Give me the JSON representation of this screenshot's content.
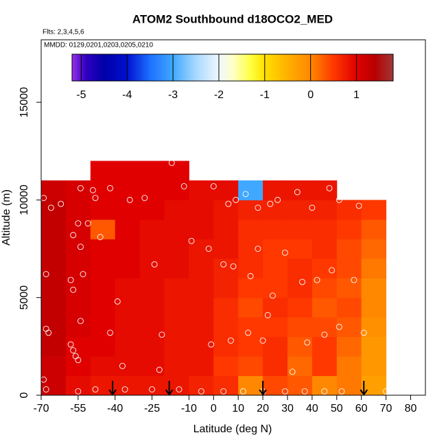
{
  "chart_data": {
    "type": "heatmap",
    "title": "ATOM2 Southbound d18OCO2_MED",
    "subtitle": "Flts: 2,3,4,5,6",
    "annotation": "MMDD: 0129,0201,0203,0205,0210",
    "x_label": "Latitude (deg N)",
    "y_label": "Altitude (m)",
    "xlim": [
      -70,
      86
    ],
    "ylim": [
      0,
      18200
    ],
    "xticks": [
      -70,
      -55,
      -40,
      -25,
      -10,
      0,
      10,
      20,
      30,
      40,
      50,
      60,
      70,
      80
    ],
    "yticks": [
      0,
      5000,
      10000,
      15000
    ],
    "x_edges": [
      -70,
      -60,
      -50,
      -40,
      -30,
      -20,
      -10,
      0,
      10,
      20,
      30,
      40,
      50,
      60,
      70
    ],
    "y_edges": [
      0,
      1000,
      2000,
      3000,
      4000,
      5000,
      6000,
      7000,
      8000,
      9000,
      10000,
      11000,
      12000
    ],
    "z": [
      [
        1.2,
        0.9,
        0.8,
        0.8,
        0.8,
        0.8,
        0.7,
        0.6,
        0.0,
        0.4,
        0.3,
        0.0,
        0.1,
        -0.3
      ],
      [
        1.2,
        1.0,
        0.9,
        0.9,
        0.9,
        0.8,
        0.8,
        0.5,
        0.4,
        0.6,
        0.2,
        0.5,
        0.1,
        -0.2
      ],
      [
        1.3,
        1.0,
        1.0,
        0.9,
        0.9,
        0.8,
        0.8,
        0.6,
        0.5,
        0.6,
        0.3,
        0.5,
        0.2,
        -0.2
      ],
      [
        1.3,
        1.1,
        1.0,
        0.9,
        0.9,
        0.8,
        0.8,
        0.6,
        0.5,
        0.5,
        0.4,
        0.4,
        0.3,
        -0.1
      ],
      [
        1.3,
        1.1,
        1.0,
        0.9,
        0.9,
        0.8,
        0.8,
        0.6,
        0.4,
        0.6,
        0.5,
        0.3,
        0.4,
        0.0
      ],
      [
        1.3,
        1.1,
        1.0,
        0.9,
        0.9,
        0.8,
        0.8,
        0.7,
        0.5,
        0.5,
        0.6,
        0.4,
        0.3,
        0.0
      ],
      [
        1.3,
        1.1,
        1.0,
        1.0,
        0.9,
        0.9,
        0.8,
        0.7,
        0.6,
        0.5,
        0.6,
        0.5,
        0.4,
        0.1
      ],
      [
        1.3,
        1.1,
        1.0,
        1.0,
        0.9,
        0.9,
        0.8,
        0.8,
        0.6,
        0.5,
        0.5,
        0.6,
        0.4,
        0.2
      ],
      [
        1.3,
        1.1,
        0.3,
        1.0,
        0.9,
        0.9,
        0.9,
        0.8,
        0.6,
        0.6,
        0.6,
        0.6,
        0.5,
        0.3
      ],
      [
        1.3,
        1.1,
        1.0,
        1.0,
        1.0,
        0.9,
        0.9,
        0.8,
        0.7,
        0.7,
        0.7,
        0.7,
        0.6,
        0.5
      ],
      [
        1.2,
        1.1,
        1.0,
        1.0,
        1.0,
        1.0,
        0.9,
        0.9,
        -3.0,
        0.8,
        0.8,
        0.8,
        null,
        null
      ],
      [
        null,
        null,
        1.0,
        1.0,
        1.0,
        1.0,
        null,
        null,
        null,
        null,
        null,
        null,
        null,
        null
      ]
    ],
    "colorbar_lim": [
      -5.2,
      1.8
    ],
    "colorbar_ticks": [
      -5,
      -4,
      -3,
      -2,
      -1,
      0,
      1
    ],
    "colorscale": [
      [
        -5.2,
        "#9a30e8"
      ],
      [
        -4.9,
        "#3000c0"
      ],
      [
        -4.5,
        "#0000a8"
      ],
      [
        -4.0,
        "#0010d0"
      ],
      [
        -3.5,
        "#1e70ff"
      ],
      [
        -3.0,
        "#40a8ff"
      ],
      [
        -2.5,
        "#a8d8ff"
      ],
      [
        -2.0,
        "#eef8ff"
      ],
      [
        -1.7,
        "#ffffc8"
      ],
      [
        -1.3,
        "#ffff40"
      ],
      [
        -1.0,
        "#ffe000"
      ],
      [
        -0.5,
        "#ffb000"
      ],
      [
        0.0,
        "#ff8800"
      ],
      [
        0.5,
        "#ff3800"
      ],
      [
        1.0,
        "#e00000"
      ],
      [
        1.4,
        "#b80000"
      ],
      [
        1.8,
        "#a03838"
      ]
    ],
    "points": {
      "x": [
        -69,
        -66,
        -62,
        -54,
        -49,
        -48,
        -42,
        -34,
        -28,
        -17,
        -12,
        0,
        6,
        9,
        13,
        18,
        23,
        26,
        34,
        40,
        47,
        51,
        59,
        -55,
        -51,
        -46,
        -57,
        -54,
        -68,
        -58,
        -53,
        -57,
        -24,
        -9,
        -2,
        4,
        8,
        15,
        18,
        29,
        36,
        42,
        48,
        57,
        -39,
        22,
        24,
        -54,
        -42,
        -68,
        -67,
        -21,
        14,
        20,
        38,
        45,
        51,
        61,
        -58,
        -57,
        -56,
        -55,
        -37,
        -22,
        -1,
        7,
        32,
        -69,
        -68,
        -55,
        -48,
        -36,
        -25,
        -14,
        -5,
        4,
        12,
        20,
        29,
        37,
        45,
        52,
        70
      ],
      "y": [
        10100,
        9600,
        9800,
        10600,
        10500,
        10100,
        10600,
        10000,
        10100,
        11900,
        10700,
        10700,
        9800,
        10000,
        10300,
        9600,
        9800,
        10000,
        10400,
        9600,
        10600,
        10000,
        9700,
        8800,
        8800,
        8100,
        8200,
        7600,
        6200,
        5900,
        6200,
        5400,
        6700,
        7900,
        7500,
        6700,
        6600,
        6100,
        7500,
        7300,
        5800,
        5900,
        6400,
        5900,
        4800,
        4100,
        5100,
        3800,
        3200,
        3400,
        3200,
        3100,
        3200,
        2800,
        2700,
        3100,
        3500,
        3200,
        2600,
        2300,
        2000,
        1800,
        1500,
        1300,
        2600,
        2800,
        1200,
        800,
        300,
        200,
        300,
        300,
        300,
        300,
        200,
        200,
        200,
        200,
        200,
        200,
        200,
        200,
        200
      ]
    },
    "arrows_lat": [
      -41,
      -18,
      20,
      61
    ]
  }
}
